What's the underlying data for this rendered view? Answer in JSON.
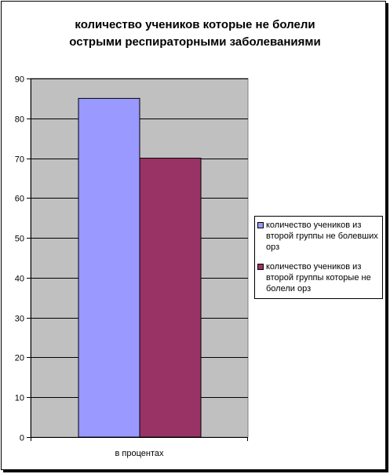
{
  "chart_data": {
    "type": "bar",
    "title_lines": [
      "количество учеников которые не болели",
      "острыми респираторными заболеваниями"
    ],
    "categories": [
      "в процентах"
    ],
    "series": [
      {
        "name": "количество учеников из второй группы не болевших орз",
        "values": [
          85
        ],
        "color": "#9999ff"
      },
      {
        "name": "количество учеников из второй группы  которые не болели орз",
        "values": [
          70
        ],
        "color": "#993366"
      }
    ],
    "ylim": [
      0,
      90
    ],
    "yticks": [
      0,
      10,
      20,
      30,
      40,
      50,
      60,
      70,
      80,
      90
    ],
    "grid": true,
    "plot_background": "#c0c0c0",
    "legend_position": "right"
  }
}
